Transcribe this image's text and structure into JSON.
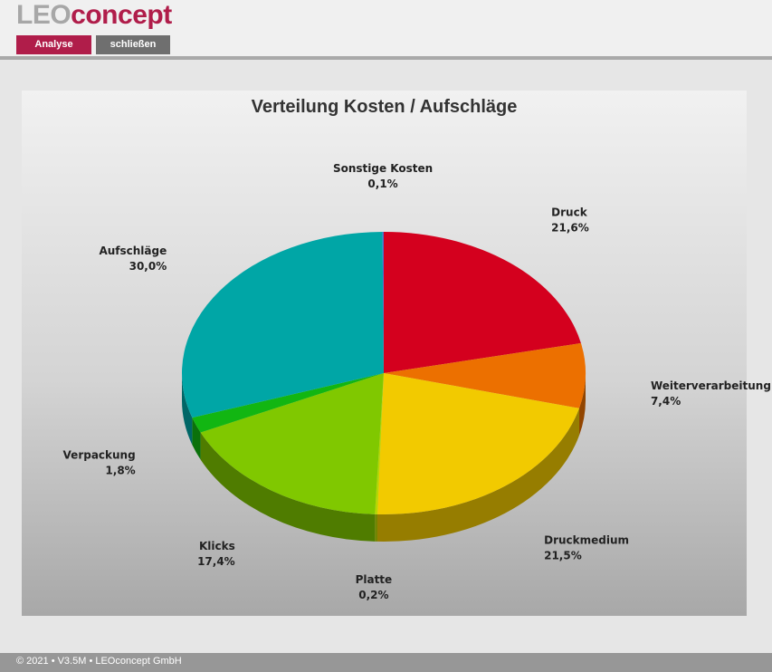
{
  "header": {
    "logo_gray": "LEO",
    "logo_red": "concept",
    "buttons": {
      "analyse": "Analyse",
      "close": "schließen"
    }
  },
  "colors": {
    "brand": "#b01d4a",
    "button_gray": "#6f6f6f"
  },
  "chart_data": {
    "type": "pie",
    "title": "Verteilung Kosten / Aufschläge",
    "slices": [
      {
        "label": "Druck",
        "value": 21.6,
        "display": "21,6%",
        "color": "#d4001e"
      },
      {
        "label": "Weiterverarbeitung",
        "value": 7.4,
        "display": "7,4%",
        "color": "#ec7000"
      },
      {
        "label": "Druckmedium",
        "value": 21.5,
        "display": "21,5%",
        "color": "#f2ca00"
      },
      {
        "label": "Platte",
        "value": 0.2,
        "display": "0,2%",
        "color": "#b6d800"
      },
      {
        "label": "Klicks",
        "value": 17.4,
        "display": "17,4%",
        "color": "#80c800"
      },
      {
        "label": "Verpackung",
        "value": 1.8,
        "display": "1,8%",
        "color": "#12b612"
      },
      {
        "label": "Aufschläge",
        "value": 30.0,
        "display": "30,0%",
        "color": "#00a6a6"
      },
      {
        "label": "Sonstige Kosten",
        "value": 0.1,
        "display": "0,1%",
        "color": "#4a6fd0"
      }
    ]
  },
  "footer": {
    "text": "© 2021 • V3.5M • LEOconcept GmbH"
  }
}
